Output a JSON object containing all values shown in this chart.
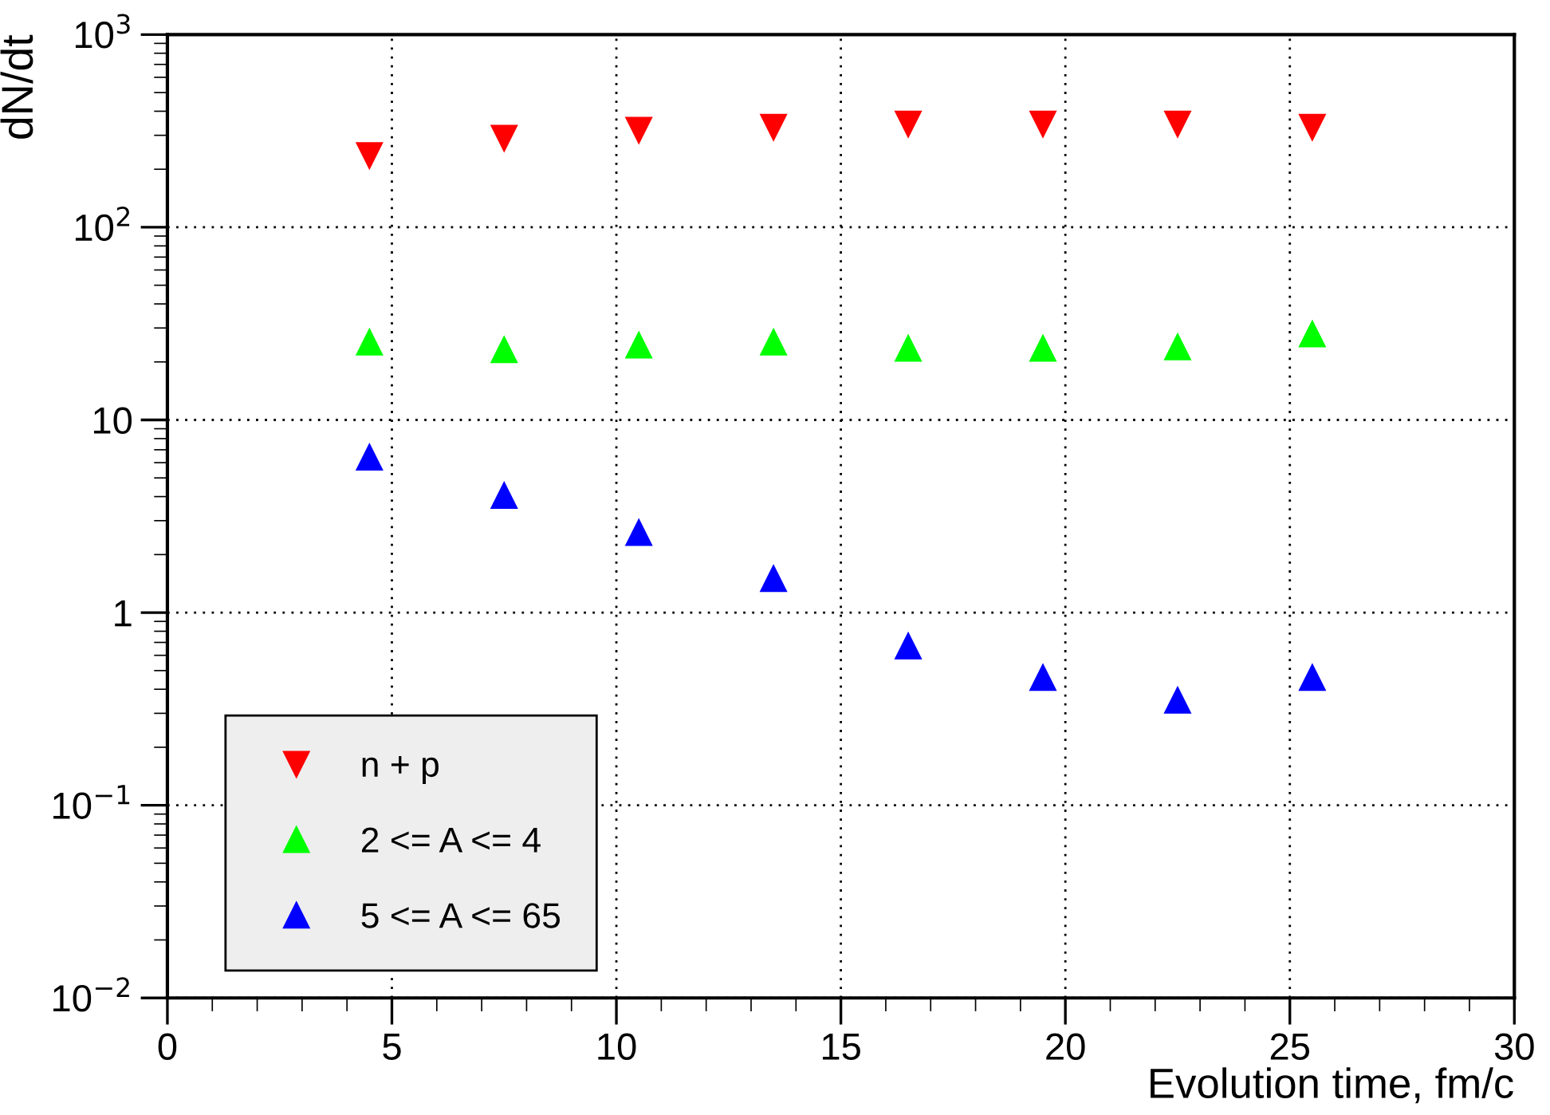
{
  "chart_data": {
    "type": "scatter",
    "xlabel": "Evolution time, fm/c",
    "ylabel": "dN/dt",
    "x": [
      4.5,
      7.5,
      10.5,
      13.5,
      16.5,
      19.5,
      22.5,
      25.5
    ],
    "series": [
      {
        "name": "n + p",
        "color": "#ff0000",
        "marker": "triangle_down",
        "values": [
          236,
          290,
          319,
          331,
          344,
          344,
          344,
          331
        ]
      },
      {
        "name": "2 <= A <= 4",
        "color": "#00ff00",
        "marker": "triangle",
        "values": [
          25.3,
          23.1,
          24.4,
          25.3,
          23.5,
          23.5,
          23.9,
          27.9
        ]
      },
      {
        "name": "5 <= A <= 65",
        "color": "#0000ff",
        "marker": "triangle",
        "values": [
          6.4,
          4.05,
          2.6,
          1.5,
          0.67,
          0.46,
          0.35,
          0.46
        ]
      }
    ],
    "log": "y",
    "xlim": [
      0,
      30
    ],
    "xticks": [
      0,
      5,
      10,
      15,
      20,
      25,
      30
    ],
    "ylim": [
      0.01,
      1000
    ],
    "yticks": [
      {
        "value": 0.01,
        "label": "10$^{−2}$"
      },
      {
        "value": 0.1,
        "label": "10$^{−1}$"
      },
      1,
      10,
      {
        "value": 100,
        "label": "10$^{2}$"
      },
      {
        "value": 1000,
        "label": "10$^{3}$"
      }
    ],
    "grid": true,
    "legend": "bottom left"
  }
}
